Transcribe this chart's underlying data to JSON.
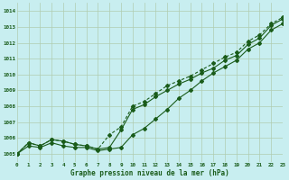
{
  "title": "Graphe pression niveau de la mer (hPa)",
  "bg_color": "#c8eef0",
  "grid_color": "#b0ccb0",
  "line_color": "#1a5c1a",
  "xmin": 0,
  "xmax": 23,
  "ymin": 1004.5,
  "ymax": 1014.5,
  "yticks": [
    1005,
    1006,
    1007,
    1008,
    1009,
    1010,
    1011,
    1012,
    1013,
    1014
  ],
  "xticks": [
    0,
    1,
    2,
    3,
    4,
    5,
    6,
    7,
    8,
    9,
    10,
    11,
    12,
    13,
    14,
    15,
    16,
    17,
    18,
    19,
    20,
    21,
    22,
    23
  ],
  "series1": [
    1005.0,
    1005.7,
    1005.5,
    1005.9,
    1005.8,
    1005.6,
    1005.5,
    1005.3,
    1005.4,
    1006.5,
    1007.8,
    1008.1,
    1008.6,
    1009.0,
    1009.4,
    1009.7,
    1010.1,
    1010.4,
    1010.9,
    1011.2,
    1011.9,
    1012.3,
    1013.1,
    1013.5
  ],
  "series2": [
    1005.0,
    1005.7,
    1005.5,
    1005.9,
    1005.8,
    1005.6,
    1005.5,
    1005.3,
    1006.2,
    1006.7,
    1008.0,
    1008.3,
    1008.8,
    1009.3,
    1009.6,
    1009.9,
    1010.3,
    1010.7,
    1011.1,
    1011.4,
    1012.1,
    1012.5,
    1013.2,
    1013.6
  ],
  "series3": [
    1005.0,
    1005.5,
    1005.4,
    1005.7,
    1005.5,
    1005.4,
    1005.4,
    1005.2,
    1005.3,
    1005.4,
    1006.2,
    1006.6,
    1007.2,
    1007.8,
    1008.5,
    1009.0,
    1009.6,
    1010.1,
    1010.5,
    1010.9,
    1011.6,
    1012.0,
    1012.8,
    1013.2
  ],
  "figwidth": 3.2,
  "figheight": 2.0,
  "dpi": 100
}
